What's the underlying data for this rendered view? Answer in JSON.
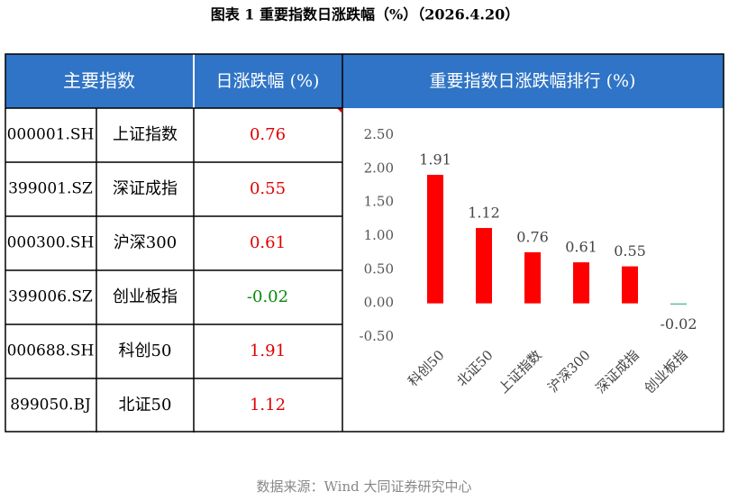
{
  "title": "图表 1  重要指数日涨跌幅（%）（2026.4.20）",
  "table": {
    "headers": [
      "主要指数",
      "日涨跌幅 (%)"
    ],
    "rows": [
      [
        "000001.SH",
        "上证指数",
        0.76
      ],
      [
        "399001.SZ",
        "深证成指",
        0.55
      ],
      [
        "000300.SH",
        "沪深300",
        0.61
      ],
      [
        "399006.SZ",
        "创业板指",
        -0.02
      ],
      [
        "000688.SH",
        "科创50",
        1.91
      ],
      [
        "899050.BJ",
        "北证50",
        1.12
      ]
    ]
  },
  "chart_data": {
    "type": "bar",
    "title": "重要指数日涨跌幅排行 (%)",
    "categories": [
      "科创50",
      "北证50",
      "上证指数",
      "沪深300",
      "深证成指",
      "创业板指"
    ],
    "values": [
      1.91,
      1.12,
      0.76,
      0.61,
      0.55,
      -0.02
    ],
    "color": "#ff0000",
    "negative_color": "#5fb8a8",
    "ylim": [
      -0.5,
      2.5
    ],
    "yticks": [
      {
        "value": -0.5,
        "label": "-0.50"
      },
      {
        "value": 0,
        "label": "0.00"
      },
      {
        "value": 0.5,
        "label": "0.50"
      },
      {
        "value": 1,
        "label": "1.00"
      },
      {
        "value": 1.5,
        "label": "1.50"
      },
      {
        "value": 2,
        "label": "2.00"
      },
      {
        "value": 2.5,
        "label": "2.50"
      }
    ],
    "grid": false
  },
  "source": "数据来源：Wind 大同证券研究中心"
}
